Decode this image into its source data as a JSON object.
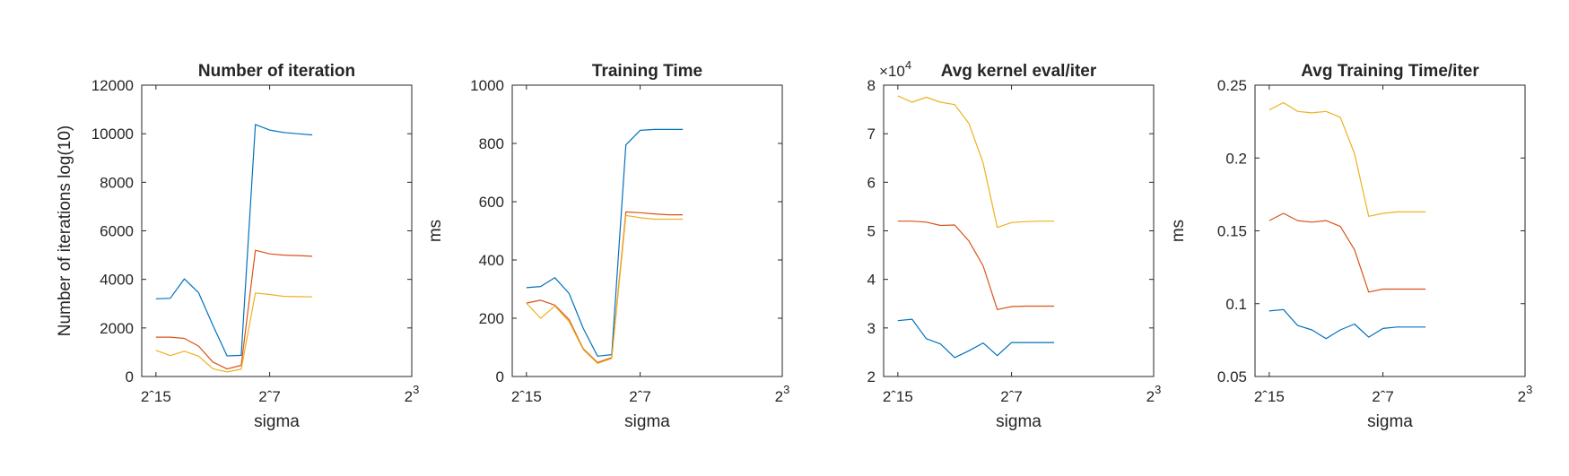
{
  "colors": {
    "series_1": "#0072BD",
    "series_2": "#D95319",
    "series_3": "#EDB120",
    "axis": "#262626"
  },
  "chart_data": [
    {
      "type": "line",
      "title": "Number of iteration",
      "xlabel": "sigma",
      "ylabel": "Number of iterations log(10)",
      "x": [
        -15,
        -14,
        -13,
        -12,
        -11,
        -10,
        -9,
        -8,
        -7,
        -6,
        -5,
        -4
      ],
      "xlim": [
        -16,
        3
      ],
      "x_ticks": [
        -15,
        -7,
        3
      ],
      "x_tick_labels": [
        {
          "base": "2",
          "sep": "ˆ",
          "exp": "15"
        },
        {
          "base": "2",
          "sep": "ˆ",
          "exp": "7"
        },
        {
          "base": "2",
          "sep": "",
          "exp": "3"
        }
      ],
      "ylim": [
        0,
        12000
      ],
      "y_ticks": [
        0,
        2000,
        4000,
        6000,
        8000,
        10000,
        12000
      ],
      "y_tick_labels": [
        "0",
        "2000",
        "4000",
        "6000",
        "8000",
        "10000",
        "12000"
      ],
      "exponent_label": "",
      "grid": false,
      "series": [
        {
          "values": [
            3200,
            3220,
            4020,
            3450,
            2120,
            850,
            870,
            10380,
            10150,
            10050,
            10000,
            9950
          ]
        },
        {
          "values": [
            1620,
            1620,
            1570,
            1250,
            600,
            310,
            460,
            5200,
            5050,
            5000,
            4980,
            4950
          ]
        },
        {
          "values": [
            1080,
            860,
            1040,
            840,
            320,
            190,
            300,
            3440,
            3380,
            3300,
            3290,
            3280
          ]
        }
      ]
    },
    {
      "type": "line",
      "title": "Training Time",
      "xlabel": "sigma",
      "ylabel": "ms",
      "x": [
        -15,
        -14,
        -13,
        -12,
        -11,
        -10,
        -9,
        -8,
        -7,
        -6,
        -5,
        -4
      ],
      "xlim": [
        -16,
        3
      ],
      "x_ticks": [
        -15,
        -7,
        3
      ],
      "x_tick_labels": [
        {
          "base": "2",
          "sep": "ˆ",
          "exp": "15"
        },
        {
          "base": "2",
          "sep": "ˆ",
          "exp": "7"
        },
        {
          "base": "2",
          "sep": "",
          "exp": "3"
        }
      ],
      "ylim": [
        0,
        1000
      ],
      "y_ticks": [
        0,
        200,
        400,
        600,
        800,
        1000
      ],
      "y_tick_labels": [
        "0",
        "200",
        "400",
        "600",
        "800",
        "1000"
      ],
      "exponent_label": "",
      "grid": false,
      "series": [
        {
          "values": [
            305,
            309,
            339,
            285,
            165,
            70,
            75,
            795,
            845,
            848,
            848,
            848
          ]
        },
        {
          "values": [
            252,
            262,
            245,
            195,
            95,
            48,
            65,
            565,
            562,
            558,
            555,
            555
          ]
        },
        {
          "values": [
            252,
            200,
            242,
            188,
            92,
            45,
            62,
            553,
            545,
            540,
            540,
            540
          ]
        }
      ]
    },
    {
      "type": "line",
      "title": "Avg kernel eval/iter",
      "xlabel": "sigma",
      "ylabel": "",
      "x": [
        -15,
        -14,
        -13,
        -12,
        -11,
        -10,
        -9,
        -8,
        -7,
        -6,
        -5,
        -4
      ],
      "xlim": [
        -16,
        3
      ],
      "x_ticks": [
        -15,
        -7,
        3
      ],
      "x_tick_labels": [
        {
          "base": "2",
          "sep": "ˆ",
          "exp": "15"
        },
        {
          "base": "2",
          "sep": "ˆ",
          "exp": "7"
        },
        {
          "base": "2",
          "sep": "",
          "exp": "3"
        }
      ],
      "ylim": [
        20000,
        80000
      ],
      "y_ticks": [
        20000,
        30000,
        40000,
        50000,
        60000,
        70000,
        80000
      ],
      "y_tick_labels": [
        "2",
        "3",
        "4",
        "5",
        "6",
        "7",
        "8"
      ],
      "exponent_label": {
        "prefix": "×10",
        "exp": "4"
      },
      "grid": false,
      "series": [
        {
          "values": [
            31500,
            31800,
            27800,
            26700,
            23900,
            25300,
            26900,
            24300,
            27000,
            27000,
            27000,
            27000
          ]
        },
        {
          "values": [
            52000,
            52000,
            51800,
            51100,
            51200,
            47900,
            42800,
            33800,
            34400,
            34500,
            34500,
            34500
          ]
        },
        {
          "values": [
            77800,
            76500,
            77500,
            76500,
            76000,
            72100,
            64000,
            50700,
            51700,
            51900,
            52000,
            52000
          ]
        }
      ]
    },
    {
      "type": "line",
      "title": "Avg Training Time/iter",
      "xlabel": "sigma",
      "ylabel": "ms",
      "x": [
        -15,
        -14,
        -13,
        -12,
        -11,
        -10,
        -9,
        -8,
        -7,
        -6,
        -5,
        -4
      ],
      "xlim": [
        -16,
        3
      ],
      "x_ticks": [
        -15,
        -7,
        3
      ],
      "x_tick_labels": [
        {
          "base": "2",
          "sep": "ˆ",
          "exp": "15"
        },
        {
          "base": "2",
          "sep": "ˆ",
          "exp": "7"
        },
        {
          "base": "2",
          "sep": "",
          "exp": "3"
        }
      ],
      "ylim": [
        0.05,
        0.25
      ],
      "y_ticks": [
        0.05,
        0.1,
        0.15,
        0.2,
        0.25
      ],
      "y_tick_labels": [
        "0.05",
        "0.1",
        "0.15",
        "0.2",
        "0.25"
      ],
      "exponent_label": "",
      "grid": false,
      "series": [
        {
          "values": [
            0.095,
            0.096,
            0.085,
            0.082,
            0.076,
            0.082,
            0.086,
            0.077,
            0.083,
            0.084,
            0.084,
            0.084
          ]
        },
        {
          "values": [
            0.157,
            0.162,
            0.157,
            0.156,
            0.157,
            0.153,
            0.137,
            0.108,
            0.11,
            0.11,
            0.11,
            0.11
          ]
        },
        {
          "values": [
            0.233,
            0.238,
            0.232,
            0.231,
            0.232,
            0.228,
            0.203,
            0.16,
            0.162,
            0.163,
            0.163,
            0.163
          ]
        }
      ]
    }
  ]
}
